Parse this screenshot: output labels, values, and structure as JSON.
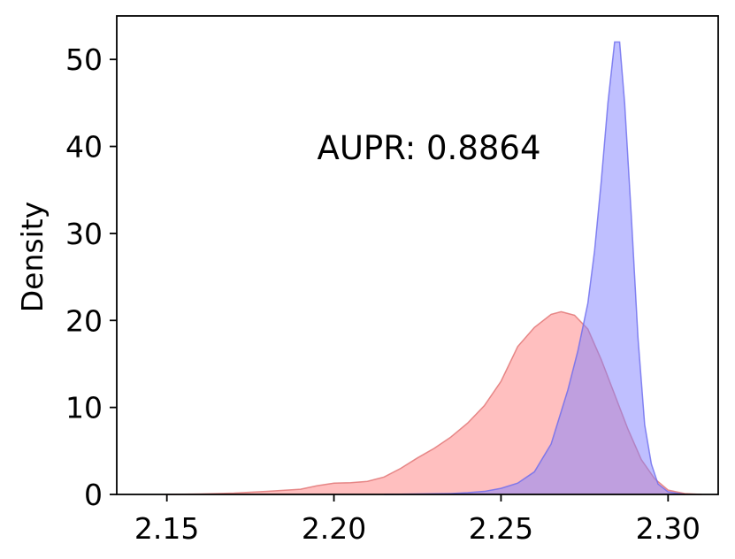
{
  "chart_data": {
    "type": "area",
    "title": "",
    "xlabel": "",
    "ylabel": "Density",
    "annotation": "AUPR: 0.8864",
    "xlim": [
      2.135,
      2.315
    ],
    "ylim": [
      0,
      55
    ],
    "xticks": [
      2.15,
      2.2,
      2.25,
      2.3
    ],
    "xtick_labels": [
      "2.15",
      "2.20",
      "2.25",
      "2.30"
    ],
    "yticks": [
      0,
      10,
      20,
      30,
      40,
      50
    ],
    "ytick_labels": [
      "0",
      "10",
      "20",
      "30",
      "40",
      "50"
    ],
    "grid": false,
    "series": [
      {
        "color": "#ff7f7f",
        "stroke": "#e07070",
        "opacity": 0.5,
        "points": [
          [
            2.15,
            0.0
          ],
          [
            2.16,
            0.05
          ],
          [
            2.17,
            0.15
          ],
          [
            2.18,
            0.35
          ],
          [
            2.19,
            0.6
          ],
          [
            2.195,
            1.0
          ],
          [
            2.2,
            1.3
          ],
          [
            2.205,
            1.35
          ],
          [
            2.21,
            1.5
          ],
          [
            2.215,
            2.0
          ],
          [
            2.22,
            3.0
          ],
          [
            2.225,
            4.2
          ],
          [
            2.23,
            5.3
          ],
          [
            2.235,
            6.6
          ],
          [
            2.24,
            8.2
          ],
          [
            2.245,
            10.2
          ],
          [
            2.25,
            13.0
          ],
          [
            2.255,
            17.0
          ],
          [
            2.26,
            19.2
          ],
          [
            2.265,
            20.7
          ],
          [
            2.268,
            21.0
          ],
          [
            2.272,
            20.6
          ],
          [
            2.276,
            19.0
          ],
          [
            2.28,
            15.5
          ],
          [
            2.284,
            11.5
          ],
          [
            2.288,
            7.5
          ],
          [
            2.292,
            4.0
          ],
          [
            2.296,
            1.8
          ],
          [
            2.3,
            0.5
          ],
          [
            2.305,
            0.1
          ],
          [
            2.31,
            0.0
          ]
        ]
      },
      {
        "color": "#7f7fff",
        "stroke": "#6a6aee",
        "opacity": 0.5,
        "points": [
          [
            2.215,
            0.0
          ],
          [
            2.225,
            0.05
          ],
          [
            2.235,
            0.1
          ],
          [
            2.24,
            0.2
          ],
          [
            2.245,
            0.35
          ],
          [
            2.25,
            0.7
          ],
          [
            2.255,
            1.3
          ],
          [
            2.26,
            2.6
          ],
          [
            2.265,
            5.8
          ],
          [
            2.27,
            12.0
          ],
          [
            2.273,
            16.5
          ],
          [
            2.276,
            22.0
          ],
          [
            2.278,
            28.0
          ],
          [
            2.28,
            36.0
          ],
          [
            2.282,
            45.0
          ],
          [
            2.284,
            52.0
          ],
          [
            2.2855,
            52.0
          ],
          [
            2.287,
            45.0
          ],
          [
            2.289,
            32.0
          ],
          [
            2.291,
            18.0
          ],
          [
            2.293,
            8.0
          ],
          [
            2.295,
            3.5
          ],
          [
            2.297,
            1.2
          ],
          [
            2.3,
            0.3
          ],
          [
            2.305,
            0.0
          ]
        ]
      }
    ]
  }
}
